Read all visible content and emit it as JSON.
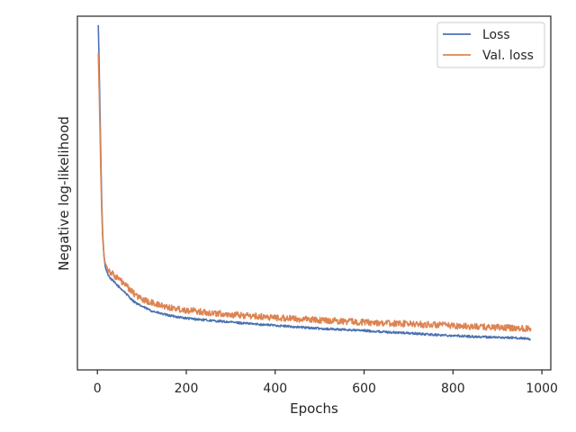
{
  "chart_data": {
    "type": "line",
    "title": "",
    "xlabel": "Epochs",
    "ylabel": "Negative log-likelihood",
    "xlim": [
      -45,
      1020
    ],
    "ylim": [
      0,
      1
    ],
    "x_ticks": [
      0,
      200,
      400,
      600,
      800,
      1000
    ],
    "y_ticks_labeled": false,
    "grid": false,
    "legend_position": "top-right",
    "series": [
      {
        "name": "Loss",
        "color": "#4c72b0",
        "x": [
          2,
          4,
          6,
          8,
          10,
          12,
          15,
          18,
          22,
          26,
          30,
          40,
          50,
          60,
          70,
          80,
          90,
          100,
          120,
          140,
          160,
          180,
          200,
          250,
          300,
          350,
          400,
          450,
          500,
          550,
          600,
          650,
          700,
          750,
          800,
          850,
          900,
          950,
          975
        ],
        "values": [
          0.975,
          0.86,
          0.72,
          0.58,
          0.46,
          0.38,
          0.32,
          0.29,
          0.275,
          0.265,
          0.258,
          0.245,
          0.233,
          0.222,
          0.208,
          0.196,
          0.186,
          0.18,
          0.168,
          0.16,
          0.154,
          0.15,
          0.146,
          0.14,
          0.135,
          0.13,
          0.126,
          0.121,
          0.117,
          0.114,
          0.111,
          0.107,
          0.104,
          0.1,
          0.097,
          0.094,
          0.092,
          0.09,
          0.087
        ],
        "noise": 0.003
      },
      {
        "name": "Val. loss",
        "color": "#dd8452",
        "x": [
          2,
          4,
          6,
          8,
          10,
          12,
          15,
          18,
          22,
          26,
          30,
          40,
          50,
          60,
          70,
          80,
          90,
          100,
          120,
          140,
          160,
          180,
          200,
          250,
          300,
          350,
          400,
          450,
          500,
          550,
          600,
          650,
          700,
          750,
          800,
          850,
          900,
          950,
          975
        ],
        "values": [
          0.895,
          0.79,
          0.67,
          0.54,
          0.44,
          0.37,
          0.32,
          0.3,
          0.29,
          0.282,
          0.276,
          0.265,
          0.255,
          0.243,
          0.23,
          0.218,
          0.208,
          0.2,
          0.19,
          0.183,
          0.177,
          0.173,
          0.169,
          0.162,
          0.156,
          0.152,
          0.148,
          0.144,
          0.141,
          0.138,
          0.135,
          0.132,
          0.13,
          0.128,
          0.125,
          0.122,
          0.12,
          0.118,
          0.117
        ],
        "noise": 0.009
      }
    ]
  }
}
